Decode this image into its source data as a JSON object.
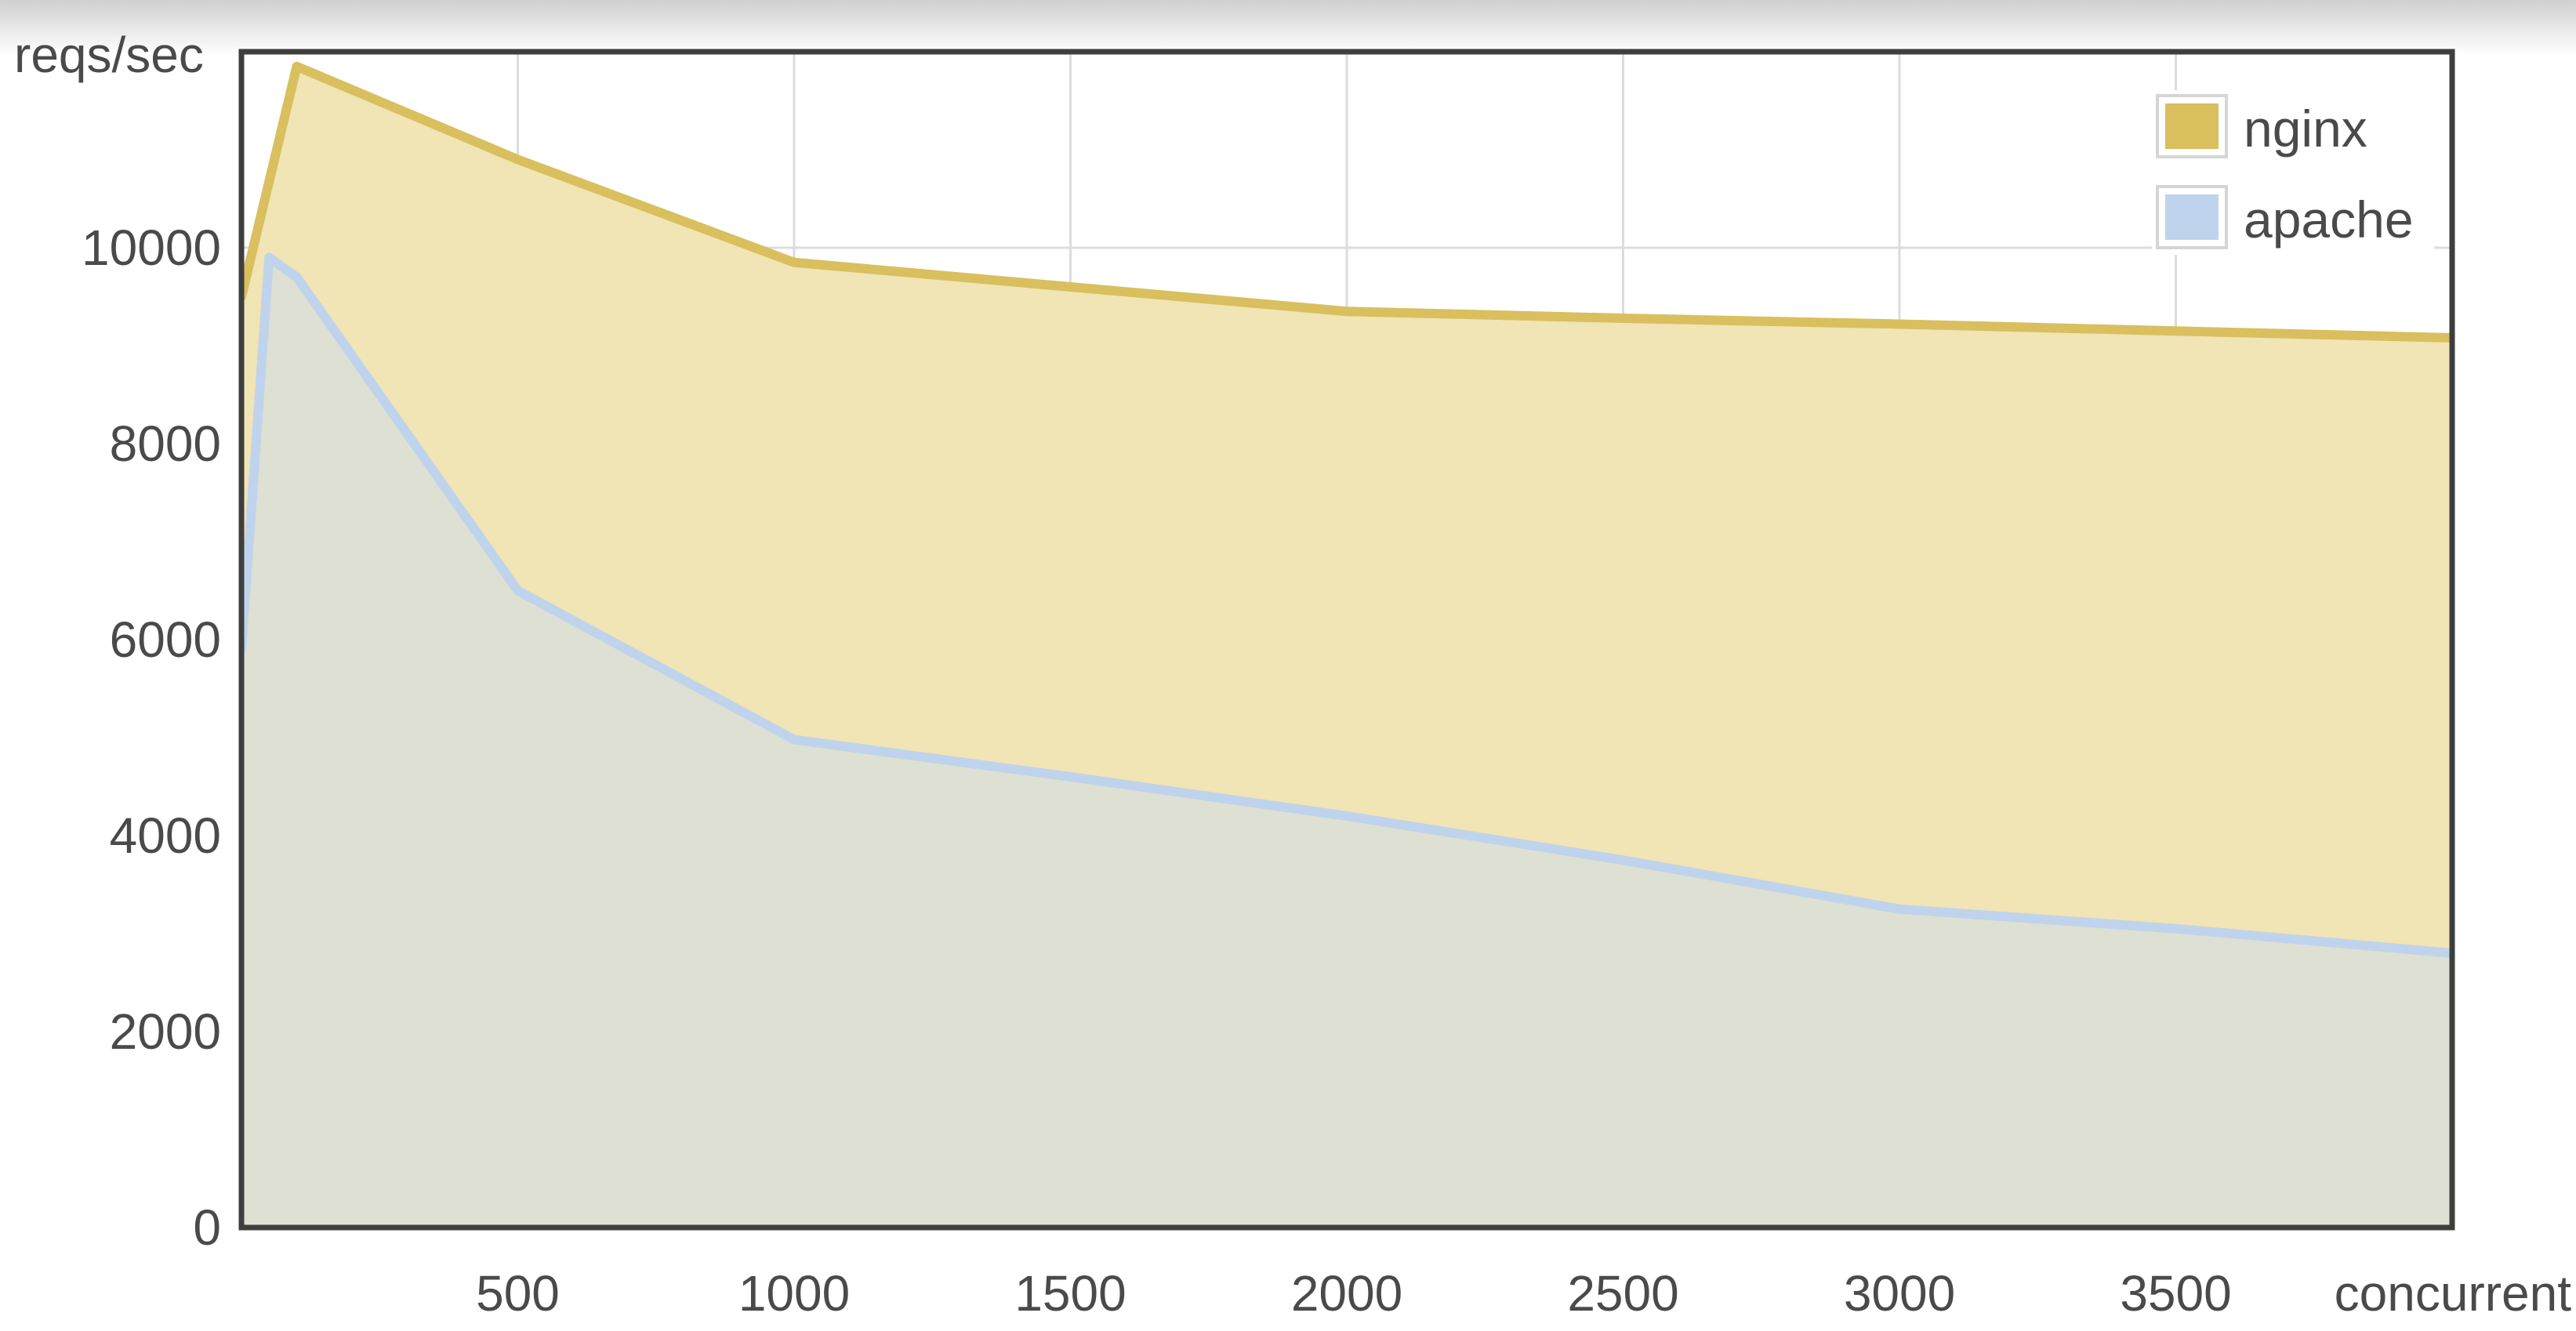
{
  "chart_data": {
    "type": "area",
    "ylabel": "reqs/sec",
    "xlabel": "concurrent",
    "xlim": [
      0,
      4000
    ],
    "ylim": [
      0,
      12000
    ],
    "x_ticks": [
      500,
      1000,
      1500,
      2000,
      2500,
      3000,
      3500
    ],
    "y_ticks": [
      0,
      2000,
      4000,
      6000,
      8000,
      10000
    ],
    "grid": true,
    "legend_position": "top-right",
    "series": [
      {
        "name": "nginx",
        "color": "#d9bf5e",
        "fill": "#f1e4b5",
        "x": [
          0,
          100,
          500,
          1000,
          1500,
          2000,
          2500,
          3000,
          3500,
          4000
        ],
        "values": [
          9500,
          11850,
          10900,
          9850,
          9600,
          9350,
          9280,
          9220,
          9150,
          9080
        ]
      },
      {
        "name": "apache",
        "color": "#bfd4ec",
        "fill": "#dde0d2",
        "x": [
          0,
          50,
          100,
          500,
          1000,
          1500,
          2000,
          2500,
          3000,
          3500,
          4000
        ],
        "values": [
          5900,
          9900,
          9700,
          6500,
          4980,
          4600,
          4200,
          3750,
          3250,
          3050,
          2800
        ]
      }
    ]
  }
}
